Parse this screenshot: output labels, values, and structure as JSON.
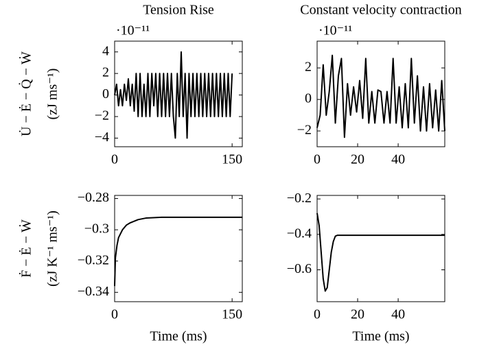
{
  "chart_data": [
    {
      "type": "line",
      "title": "Tension Rise",
      "ylabel": [
        "U̇ − Ė − Q̇ − Ẇ",
        "(zJ ms⁻¹)"
      ],
      "exponent": "·10⁻¹¹",
      "xlim": [
        0,
        163
      ],
      "xticks": [
        0,
        150
      ],
      "ylim": [
        -4.8,
        5
      ],
      "yticks": [
        -4,
        -2,
        0,
        2,
        4
      ],
      "series": [
        {
          "color": "#000000",
          "x": [
            0,
            2.5,
            5,
            7.5,
            10,
            12.5,
            15,
            17.5,
            20,
            22.5,
            25,
            27.5,
            30,
            32.5,
            35,
            37.5,
            40,
            42.5,
            45,
            47.5,
            50,
            52.5,
            55,
            57.5,
            60,
            62.5,
            65,
            67.5,
            70,
            72.5,
            75,
            77.5,
            80,
            82.5,
            85,
            87.5,
            90,
            92.5,
            95,
            97.5,
            100,
            102.5,
            105,
            107.5,
            110,
            112.5,
            115,
            117.5,
            120,
            122.5,
            125,
            127.5,
            130,
            132.5,
            135,
            137.5,
            140,
            142.5,
            145,
            147.5,
            150
          ],
          "values": [
            0,
            1,
            -1,
            0.5,
            -1,
            1,
            -0.5,
            1.5,
            -1,
            1,
            -1.5,
            2,
            -2,
            2,
            -2,
            1,
            -2,
            2,
            -2,
            2,
            -1,
            2,
            -2,
            2,
            -2,
            2,
            -2,
            2,
            -2,
            2,
            -2,
            -4,
            2,
            -2,
            4,
            -2,
            2,
            -4,
            2,
            -2,
            2,
            -2,
            2,
            -2,
            2,
            -2,
            2,
            -2,
            2,
            -2,
            2,
            -2,
            2,
            -2,
            2,
            -2,
            2,
            -2,
            2,
            -2,
            2
          ]
        }
      ]
    },
    {
      "type": "line",
      "title": "Constant velocity contraction",
      "exponent": "·10⁻¹¹",
      "xlim": [
        0,
        63
      ],
      "xticks": [
        0,
        20,
        40
      ],
      "ylim": [
        -3,
        3.7
      ],
      "yticks": [
        -2,
        0,
        2
      ],
      "series": [
        {
          "color": "#000000",
          "x": [
            0,
            1.5,
            3,
            4.5,
            6,
            7.5,
            9,
            10.5,
            12,
            13.5,
            15,
            16.5,
            18,
            19.5,
            21,
            22.5,
            24,
            25.5,
            27,
            28.5,
            30,
            31.5,
            33,
            34.5,
            36,
            37.5,
            39,
            40.5,
            42,
            43.5,
            45,
            46.5,
            48,
            49.5,
            51,
            52.5,
            54,
            55.5,
            57,
            58.5,
            60,
            61.5,
            63
          ],
          "values": [
            -1.8,
            -1,
            2.2,
            -1,
            0.5,
            2.8,
            -1.5,
            1.5,
            2.6,
            -2.4,
            1,
            -1,
            0.8,
            -0.8,
            1.2,
            -1.2,
            2.6,
            -1.5,
            0.5,
            -1.5,
            0.6,
            0.5,
            -1.5,
            0.5,
            -1.5,
            2.6,
            -1.5,
            0.8,
            -1.8,
            1,
            -1.8,
            2.6,
            -1.5,
            1.5,
            -2,
            0.8,
            -2,
            1,
            -1.8,
            0.6,
            -2,
            1.2,
            -2
          ]
        }
      ]
    },
    {
      "type": "line",
      "ylabel": [
        "Ḟ − Ė − Ẇ",
        "(zJ K⁻¹ ms⁻¹)"
      ],
      "xlabel": "Time (ms)",
      "xlim": [
        0,
        163
      ],
      "xticks": [
        0,
        150
      ],
      "ylim": [
        -0.346,
        -0.278
      ],
      "yticks": [
        -0.34,
        -0.32,
        -0.3,
        -0.28
      ],
      "series": [
        {
          "color": "#000000",
          "x": [
            0,
            1,
            3,
            5,
            10,
            15,
            20,
            30,
            40,
            60,
            100,
            163
          ],
          "values": [
            -0.336,
            -0.318,
            -0.31,
            -0.305,
            -0.3,
            -0.297,
            -0.2955,
            -0.2935,
            -0.2925,
            -0.292,
            -0.292,
            -0.292
          ]
        }
      ]
    },
    {
      "type": "line",
      "xlabel": "Time (ms)",
      "xlim": [
        0,
        63
      ],
      "xticks": [
        0,
        20,
        40
      ],
      "ylim": [
        -0.78,
        -0.18
      ],
      "yticks": [
        -0.6,
        -0.4,
        -0.2
      ],
      "series": [
        {
          "color": "#000000",
          "x": [
            0,
            1,
            2,
            3,
            4,
            5,
            6,
            7,
            8,
            9,
            10,
            20,
            40,
            63
          ],
          "values": [
            -0.28,
            -0.35,
            -0.5,
            -0.65,
            -0.72,
            -0.7,
            -0.6,
            -0.5,
            -0.44,
            -0.41,
            -0.405,
            -0.405,
            -0.405,
            -0.405
          ]
        }
      ]
    }
  ]
}
